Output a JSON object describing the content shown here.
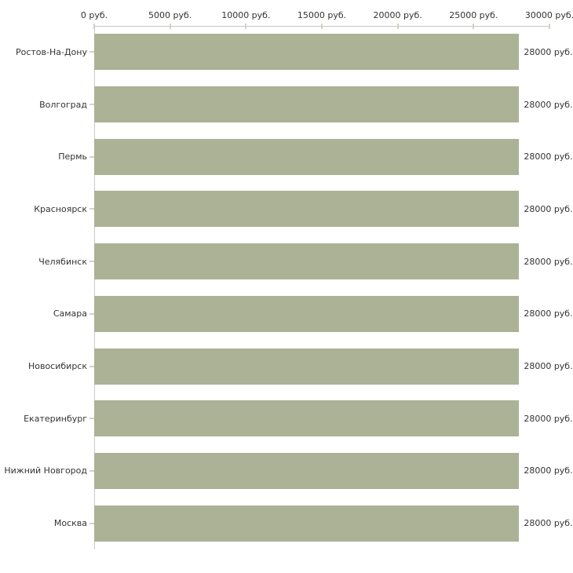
{
  "chart_data": {
    "type": "bar",
    "orientation": "horizontal",
    "title": "",
    "xlabel": "",
    "ylabel": "",
    "grid": "off",
    "legend": "none",
    "xlim": [
      0,
      30000
    ],
    "x_tick_labels": [
      "0 руб.",
      "5000 руб.",
      "10000 руб.",
      "15000 руб.",
      "20000 руб.",
      "25000 руб.",
      "30000 руб."
    ],
    "categories": [
      "Ростов-На-Дону",
      "Волгоград",
      "Пермь",
      "Красноярск",
      "Челябинск",
      "Самара",
      "Новосибирск",
      "Екатеринбург",
      "Нижний Новгород",
      "Москва"
    ],
    "values": [
      28000,
      28000,
      28000,
      28000,
      28000,
      28000,
      28000,
      28000,
      28000,
      28000
    ],
    "value_labels": [
      "28000 руб.",
      "28000 руб.",
      "28000 руб.",
      "28000 руб.",
      "28000 руб.",
      "28000 руб.",
      "28000 руб.",
      "28000 руб.",
      "28000 руб.",
      "28000 руб."
    ],
    "colors": {
      "bar": "#abb296",
      "axis_line": "#c9c9c9",
      "tick_mark": "#d3d5bf",
      "text": "#333333",
      "background": "#ffffff"
    }
  }
}
